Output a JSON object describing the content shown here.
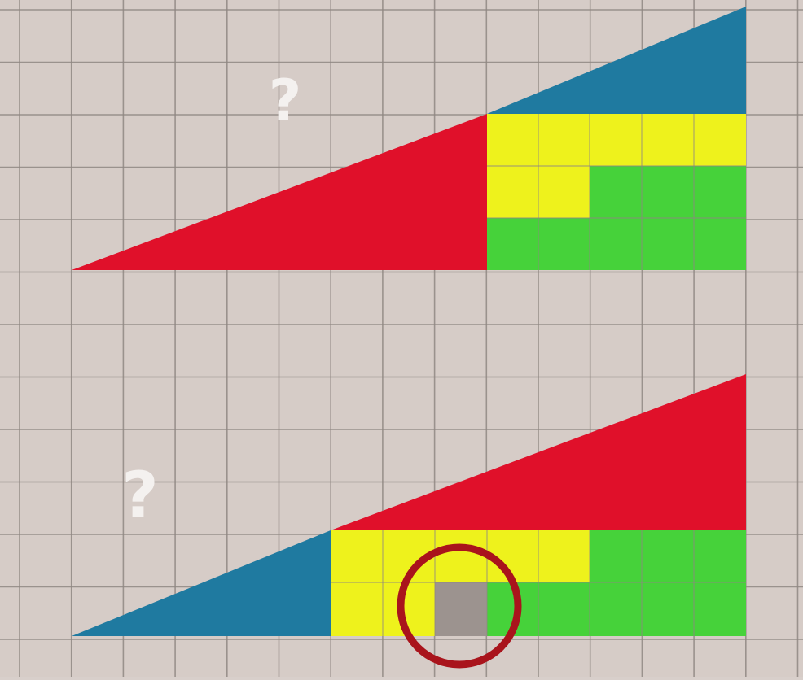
{
  "puzzle": {
    "question_marks": [
      "?",
      "?"
    ],
    "colors": {
      "background": "#d6ccc7",
      "grid_line": "#8f8783",
      "red": "#e0102a",
      "blue": "#1f7aa0",
      "yellow": "#eef21c",
      "green": "#46d23a",
      "gap": "#9c938f",
      "circle": "#a9141c"
    }
  }
}
